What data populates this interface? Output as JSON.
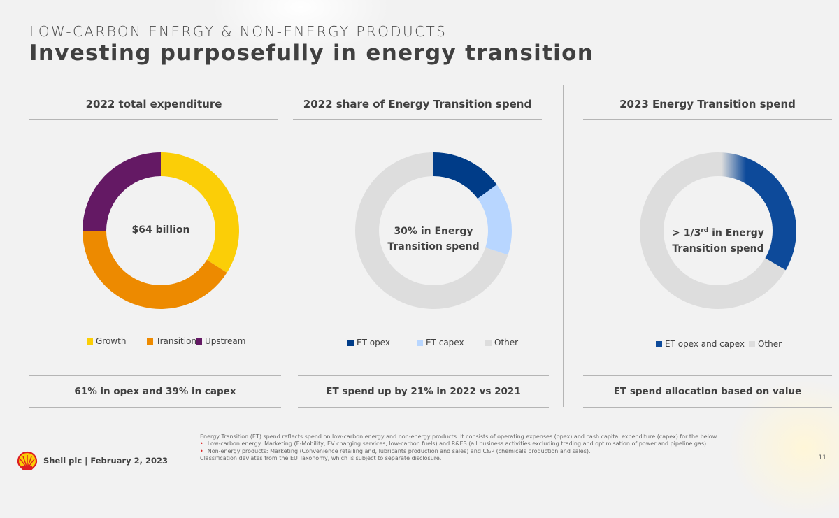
{
  "header": {
    "subtitle": "LOW-CARBON ENERGY & NON-ENERGY PRODUCTS",
    "title": "Investing purposefully in energy transition"
  },
  "panels": [
    {
      "heading": "2022 total expenditure",
      "center": "$64 billion",
      "bottom": "61% in opex and 39% in capex"
    },
    {
      "heading": "2022 share of Energy Transition spend",
      "center_line1": "30% in Energy",
      "center_line2": "Transition spend",
      "bottom": "ET spend up by 21% in 2022 vs 2021"
    },
    {
      "heading": "2023 Energy Transition spend",
      "center_line1_pre": "> 1/3",
      "center_line1_sup": "rd",
      "center_line1_post": " in Energy",
      "center_line2": "Transition spend",
      "bottom": "ET spend allocation based on value"
    }
  ],
  "chart_data": [
    {
      "type": "pie",
      "variant": "donut",
      "title": "2022 total expenditure",
      "center_text": "$64 billion",
      "categories": [
        "Growth",
        "Transition",
        "Upstream"
      ],
      "values": [
        34,
        41,
        25
      ],
      "colors": [
        "#FBCE07",
        "#ED8A00",
        "#641964"
      ]
    },
    {
      "type": "pie",
      "variant": "donut",
      "title": "2022 share of Energy Transition spend",
      "center_text": "30% in Energy Transition spend",
      "categories": [
        "ET opex",
        "ET capex",
        "Other"
      ],
      "values": [
        15,
        15,
        70
      ],
      "colors": [
        "#003C88",
        "#B8D6FF",
        "#DDDDDD"
      ]
    },
    {
      "type": "pie",
      "variant": "donut",
      "title": "2023 Energy Transition spend",
      "center_text": "> 1/3rd in Energy Transition spend",
      "categories": [
        "ET opex and capex",
        "Other"
      ],
      "values": [
        33.4,
        66.6
      ],
      "colors": [
        "#0D4A9A",
        "#DDDDDD"
      ]
    }
  ],
  "footnote": {
    "line1": "Energy Transition (ET) spend reflects spend on low-carbon energy and non-energy products. It consists of operating expenses (opex) and cash capital expenditure (capex) for the below.",
    "line2": "Low-carbon energy: Marketing (E-Mobility, EV charging services, low-carbon fuels) and R&ES (all business activities excluding trading and optimisation of power and pipeline gas).",
    "line3": "Non-energy products: Marketing (Convenience retailing and, lubricants production and sales) and C&P (chemicals production and sales).",
    "line4": "Classification deviates from the EU Taxonomy, which is subject to separate disclosure."
  },
  "footer": {
    "company_date": "Shell plc | February 2, 2023",
    "page_number": "11",
    "logo": "shell-pecten-logo"
  }
}
